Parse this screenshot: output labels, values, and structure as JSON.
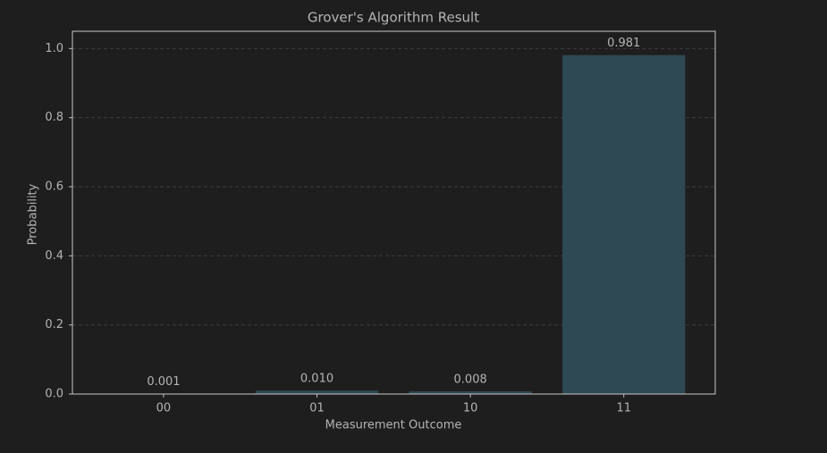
{
  "chart_data": {
    "type": "bar",
    "title": "Grover's Algorithm Result",
    "x_label": "Measurement Outcome",
    "y_label": "Probability",
    "categories": [
      "00",
      "01",
      "10",
      "11"
    ],
    "values": [
      0.001,
      0.01,
      0.008,
      0.981
    ],
    "value_labels": [
      "0.001",
      "0.010",
      "0.008",
      "0.981"
    ],
    "color": "#2e4953",
    "ylim": [
      0,
      1.05
    ],
    "yticks": [
      {
        "value": 0,
        "label": "0.0"
      },
      {
        "value": 0.2,
        "label": "0.2"
      },
      {
        "value": 0.4,
        "label": "0.4"
      },
      {
        "value": 0.6,
        "label": "0.6"
      },
      {
        "value": 0.8,
        "label": "0.8"
      },
      {
        "value": 1.0,
        "label": "1.0"
      }
    ],
    "grid": true
  }
}
